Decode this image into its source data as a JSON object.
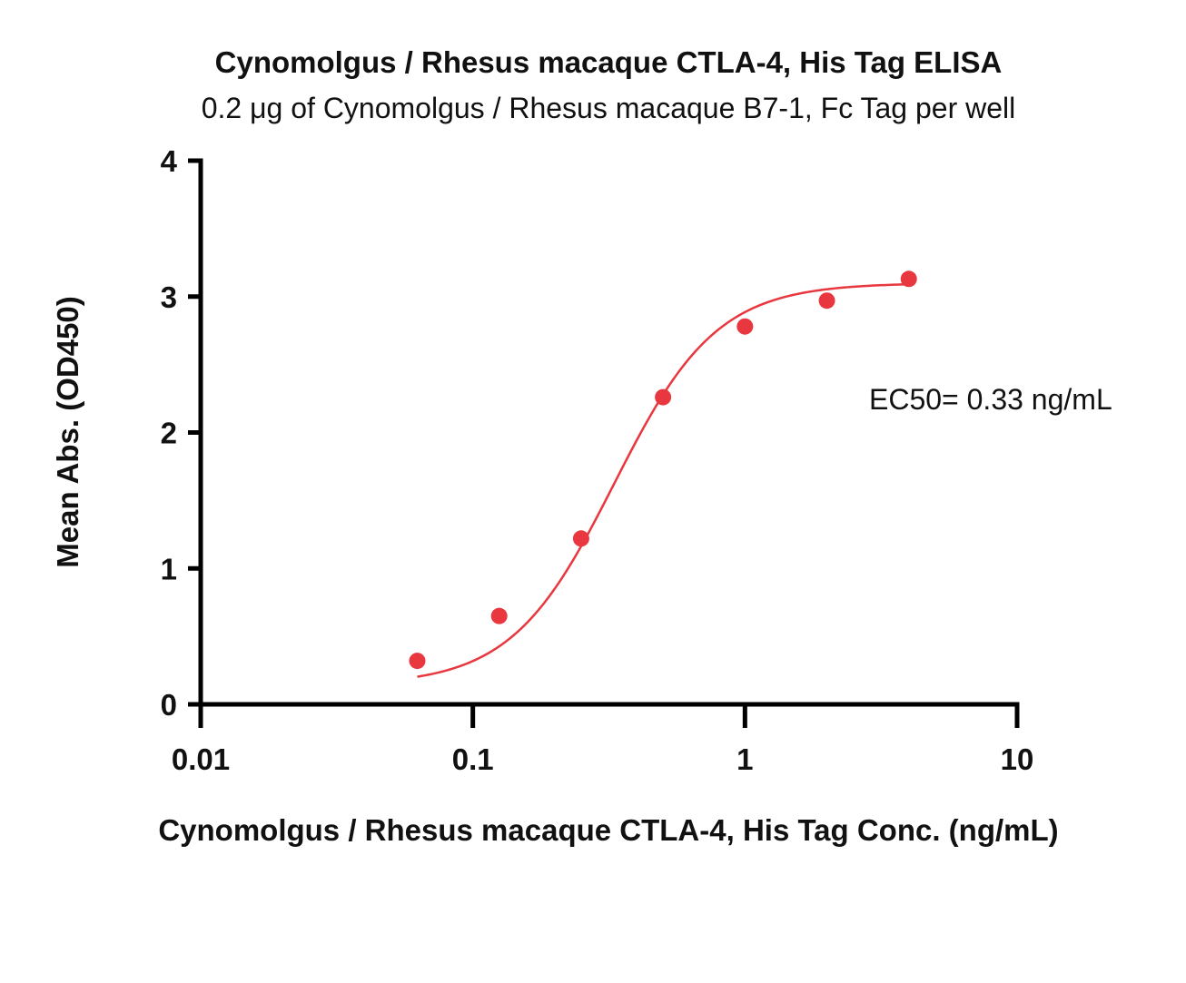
{
  "chart_data": {
    "type": "scatter",
    "title": "Cynomolgus / Rhesus macaque CTLA-4, His Tag ELISA",
    "subtitle": "0.2 μg of Cynomolgus / Rhesus macaque B7-1, Fc Tag per well",
    "xlabel": "Cynomolgus / Rhesus macaque CTLA-4, His Tag Conc. (ng/mL)",
    "ylabel": "Mean Abs. (OD450)",
    "x_scale": "log",
    "xlim": [
      0.01,
      10
    ],
    "ylim": [
      0,
      4
    ],
    "x_ticks": [
      0.01,
      0.1,
      1,
      10
    ],
    "x_tick_labels": [
      "0.01",
      "0.1",
      "1",
      "10"
    ],
    "y_ticks": [
      0,
      1,
      2,
      3,
      4
    ],
    "y_tick_labels": [
      "0",
      "1",
      "2",
      "3",
      "4"
    ],
    "grid": false,
    "series": [
      {
        "color": "#e8373e",
        "marker": "circle",
        "points": [
          {
            "x": 0.0625,
            "y": 0.32
          },
          {
            "x": 0.125,
            "y": 0.65
          },
          {
            "x": 0.25,
            "y": 1.22
          },
          {
            "x": 0.5,
            "y": 2.26
          },
          {
            "x": 1,
            "y": 2.78
          },
          {
            "x": 2,
            "y": 2.97
          },
          {
            "x": 4,
            "y": 3.13
          }
        ],
        "fit": {
          "type": "4PL",
          "bottom": 0.14,
          "top": 3.1,
          "ec50": 0.33,
          "hill": 2.3,
          "x_range": [
            0.0625,
            4
          ]
        }
      }
    ],
    "annotations": [
      {
        "text": "EC50= 0.33 ng/mL"
      }
    ]
  }
}
